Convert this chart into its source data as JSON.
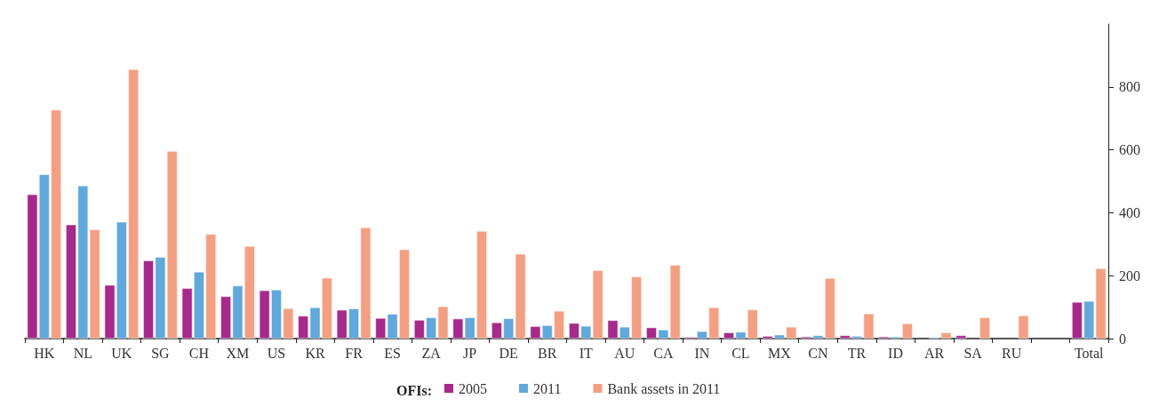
{
  "chart_data": {
    "type": "bar",
    "categories": [
      "HK",
      "NL",
      "UK",
      "SG",
      "CH",
      "XM",
      "US",
      "KR",
      "FR",
      "ES",
      "ZA",
      "JP",
      "DE",
      "BR",
      "IT",
      "AU",
      "CA",
      "IN",
      "CL",
      "MX",
      "CN",
      "TR",
      "ID",
      "AR",
      "SA",
      "RU",
      null,
      "Total"
    ],
    "series": [
      {
        "name": "2005",
        "color": "#a8288c",
        "values": [
          458,
          362,
          170,
          248,
          160,
          134,
          153,
          72,
          91,
          65,
          59,
          63,
          51,
          39,
          49,
          58,
          35,
          5,
          19,
          8,
          6,
          10,
          6,
          null,
          10,
          null,
          null,
          116
        ]
      },
      {
        "name": "2011",
        "color": "#5ea9dd",
        "values": [
          522,
          486,
          371,
          259,
          212,
          168,
          155,
          99,
          95,
          78,
          67,
          67,
          64,
          42,
          40,
          37,
          28,
          23,
          21,
          12,
          10,
          8,
          6,
          4,
          null,
          null,
          null,
          119
        ]
      },
      {
        "name": "Bank assets in 2011",
        "color": "#f59f80",
        "values": [
          727,
          347,
          856,
          596,
          332,
          294,
          96,
          193,
          353,
          283,
          102,
          342,
          269,
          88,
          217,
          197,
          234,
          99,
          92,
          37,
          192,
          79,
          48,
          19,
          67,
          73,
          null,
          223
        ]
      }
    ],
    "legend_title": "OFIs:",
    "ylim": [
      0,
      1000
    ],
    "yticks": [
      0,
      200,
      400,
      600,
      800
    ],
    "grid": false,
    "legend": "bottom"
  }
}
